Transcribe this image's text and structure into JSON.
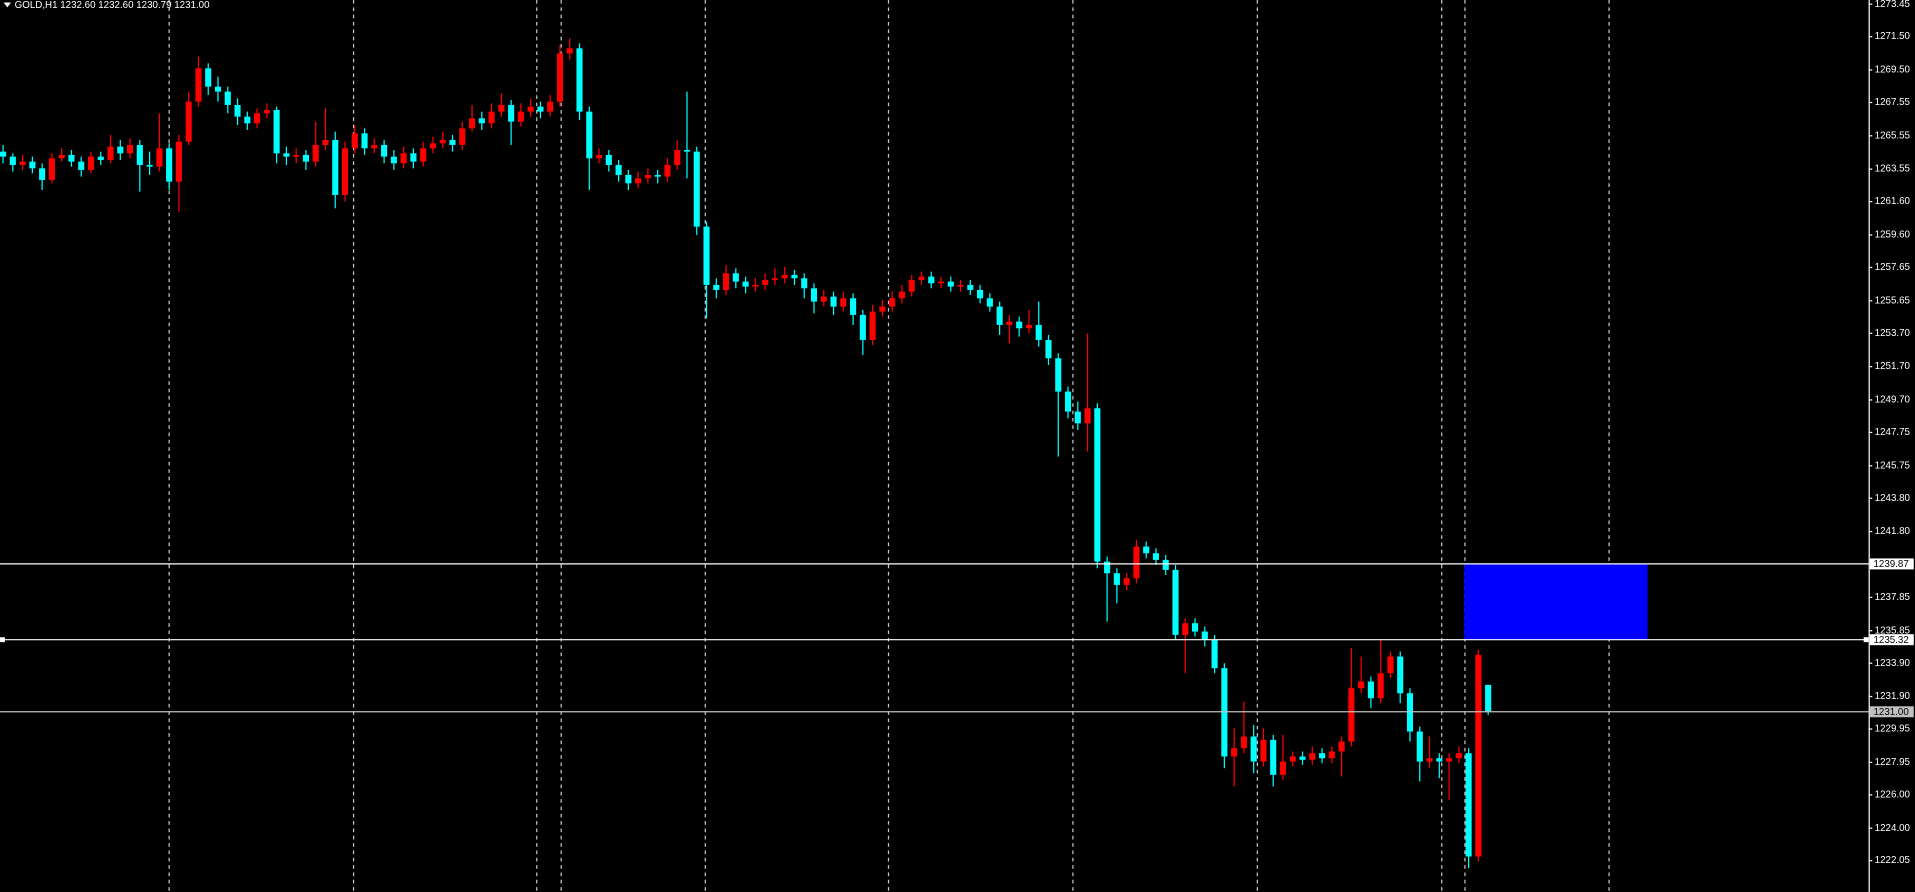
{
  "chart_data": {
    "type": "candlestick",
    "title": "GOLD,H1  1232.60 1232.60 1230.79 1231.00",
    "bull_color": "#ff0000",
    "bear_color": "#00ffff",
    "ylim": [
      1220.17,
      1273.7
    ],
    "yticks": [
      1273.45,
      {
        "value": 1271.5,
        "label": "1271.50"
      },
      {
        "value": 1269.5,
        "label": "1269.50"
      },
      1267.55,
      1265.55,
      1263.55,
      {
        "value": 1261.6,
        "label": "1261.60"
      },
      {
        "value": 1259.6,
        "label": "1259.60"
      },
      1257.65,
      1255.65,
      {
        "value": 1253.7,
        "label": "1253.70"
      },
      {
        "value": 1251.7,
        "label": "1251.70"
      },
      {
        "value": 1249.7,
        "label": "1249.70"
      },
      1247.75,
      1245.75,
      {
        "value": 1243.8,
        "label": "1243.80"
      },
      {
        "value": 1241.8,
        "label": "1241.80"
      },
      1237.85,
      1235.85,
      {
        "value": 1233.9,
        "label": "1233.90"
      },
      {
        "value": 1231.9,
        "label": "1231.90"
      },
      1229.95,
      1227.95,
      {
        "value": 1226,
        "label": "1226.00"
      },
      {
        "value": 1224,
        "label": "1224.00"
      },
      1222.05
    ],
    "levels": [
      {
        "value": 1239.87,
        "color": "#ffffff"
      },
      {
        "value": 1235.32,
        "color": "#ffffff"
      },
      {
        "value": 1231,
        "label": "1231.00",
        "color": "#c0c0c0"
      }
    ],
    "zone": {
      "from": 1239.87,
      "to": 1235.32,
      "color": "#0000ff"
    },
    "ohlc": [
      [
        1264.6,
        1265.0,
        1263.9,
        1264.3
      ],
      [
        1264.3,
        1264.5,
        1263.4,
        1263.8
      ],
      [
        1263.8,
        1264.4,
        1263.5,
        1264.0
      ],
      [
        1264.0,
        1264.3,
        1263.3,
        1263.6
      ],
      [
        1263.6,
        1263.9,
        1262.3,
        1262.9
      ],
      [
        1262.9,
        1264.5,
        1262.7,
        1264.2
      ],
      [
        1264.2,
        1264.8,
        1264.0,
        1264.4
      ],
      [
        1264.4,
        1264.7,
        1263.7,
        1264.0
      ],
      [
        1264.0,
        1264.3,
        1263.1,
        1263.5
      ],
      [
        1263.5,
        1264.6,
        1263.3,
        1264.3
      ],
      [
        1264.3,
        1264.6,
        1263.8,
        1264.1
      ],
      [
        1264.1,
        1265.6,
        1263.9,
        1264.9
      ],
      [
        1264.9,
        1265.3,
        1264.1,
        1264.5
      ],
      [
        1264.5,
        1265.4,
        1264.2,
        1265.0
      ],
      [
        1265.0,
        1265.3,
        1262.2,
        1263.8
      ],
      [
        1263.8,
        1264.6,
        1263.2,
        1263.7
      ],
      [
        1263.7,
        1266.9,
        1263.4,
        1264.8
      ],
      [
        1264.8,
        1265.1,
        1262.3,
        1262.8
      ],
      [
        1262.8,
        1265.6,
        1261.0,
        1265.2
      ],
      [
        1265.2,
        1268.2,
        1265.0,
        1267.6
      ],
      [
        1267.6,
        1270.3,
        1267.3,
        1269.6
      ],
      [
        1269.6,
        1269.9,
        1268.0,
        1268.5
      ],
      [
        1268.5,
        1269.1,
        1267.6,
        1268.2
      ],
      [
        1268.2,
        1268.5,
        1266.9,
        1267.4
      ],
      [
        1267.4,
        1267.8,
        1266.2,
        1266.7
      ],
      [
        1266.7,
        1267.0,
        1265.9,
        1266.3
      ],
      [
        1266.3,
        1267.2,
        1266.0,
        1266.9
      ],
      [
        1266.9,
        1267.5,
        1266.6,
        1267.1
      ],
      [
        1267.1,
        1267.3,
        1263.9,
        1264.5
      ],
      [
        1264.5,
        1264.9,
        1263.8,
        1264.3
      ],
      [
        1264.3,
        1264.8,
        1263.9,
        1264.4
      ],
      [
        1264.4,
        1264.7,
        1263.5,
        1264.0
      ],
      [
        1264.0,
        1266.4,
        1263.7,
        1265.0
      ],
      [
        1265.0,
        1267.2,
        1264.7,
        1265.3
      ],
      [
        1265.3,
        1265.8,
        1261.2,
        1262.0
      ],
      [
        1262.0,
        1265.2,
        1261.6,
        1264.8
      ],
      [
        1264.8,
        1266.2,
        1264.5,
        1265.7
      ],
      [
        1265.7,
        1266.0,
        1264.4,
        1264.8
      ],
      [
        1264.8,
        1265.4,
        1264.5,
        1265.0
      ],
      [
        1265.0,
        1265.3,
        1263.9,
        1264.3
      ],
      [
        1264.3,
        1264.7,
        1263.5,
        1263.9
      ],
      [
        1263.9,
        1264.9,
        1263.6,
        1264.5
      ],
      [
        1264.5,
        1264.8,
        1263.6,
        1264.0
      ],
      [
        1264.0,
        1265.2,
        1263.7,
        1264.8
      ],
      [
        1264.8,
        1265.5,
        1264.5,
        1265.1
      ],
      [
        1265.1,
        1265.8,
        1264.8,
        1265.3
      ],
      [
        1265.3,
        1265.6,
        1264.6,
        1265.0
      ],
      [
        1265.0,
        1266.4,
        1264.7,
        1266.0
      ],
      [
        1266.0,
        1267.4,
        1265.8,
        1266.6
      ],
      [
        1266.6,
        1267.0,
        1265.9,
        1266.3
      ],
      [
        1266.3,
        1267.5,
        1266.0,
        1267.0
      ],
      [
        1267.0,
        1268.1,
        1266.7,
        1267.4
      ],
      [
        1267.4,
        1267.7,
        1265.0,
        1266.4
      ],
      [
        1266.4,
        1267.5,
        1266.1,
        1267.0
      ],
      [
        1267.0,
        1267.8,
        1266.7,
        1267.3
      ],
      [
        1267.3,
        1267.6,
        1266.6,
        1267.0
      ],
      [
        1267.0,
        1268.0,
        1266.7,
        1267.6
      ],
      [
        1267.6,
        1271.0,
        1267.3,
        1270.5
      ],
      [
        1270.5,
        1271.4,
        1270.1,
        1270.8
      ],
      [
        1270.8,
        1271.1,
        1266.5,
        1267.0
      ],
      [
        1267.0,
        1267.3,
        1262.3,
        1264.2
      ],
      [
        1264.2,
        1264.8,
        1263.9,
        1264.4
      ],
      [
        1264.4,
        1264.7,
        1263.4,
        1263.8
      ],
      [
        1263.8,
        1264.1,
        1262.8,
        1263.2
      ],
      [
        1263.2,
        1263.5,
        1262.3,
        1262.7
      ],
      [
        1262.7,
        1263.4,
        1262.4,
        1263.0
      ],
      [
        1263.0,
        1263.6,
        1262.7,
        1263.2
      ],
      [
        1263.2,
        1263.5,
        1262.7,
        1263.1
      ],
      [
        1263.1,
        1264.2,
        1262.8,
        1263.8
      ],
      [
        1263.8,
        1265.3,
        1263.5,
        1264.7
      ],
      [
        1264.7,
        1268.2,
        1263.0,
        1264.6
      ],
      [
        1264.6,
        1264.9,
        1259.6,
        1260.1
      ],
      [
        1260.1,
        1260.4,
        1254.6,
        1256.6
      ],
      [
        1256.6,
        1257.0,
        1255.8,
        1256.3
      ],
      [
        1256.3,
        1257.8,
        1256.0,
        1257.3
      ],
      [
        1257.3,
        1257.6,
        1256.4,
        1256.8
      ],
      [
        1256.8,
        1257.1,
        1256.1,
        1256.5
      ],
      [
        1256.5,
        1257.0,
        1256.2,
        1256.6
      ],
      [
        1256.6,
        1257.3,
        1256.3,
        1256.9
      ],
      [
        1256.9,
        1257.6,
        1256.6,
        1257.0
      ],
      [
        1257.0,
        1257.7,
        1256.7,
        1257.2
      ],
      [
        1257.2,
        1257.5,
        1256.6,
        1257.0
      ],
      [
        1257.0,
        1257.3,
        1255.8,
        1256.4
      ],
      [
        1256.4,
        1256.7,
        1254.9,
        1255.6
      ],
      [
        1255.6,
        1256.3,
        1255.3,
        1255.9
      ],
      [
        1255.9,
        1256.2,
        1254.8,
        1255.3
      ],
      [
        1255.3,
        1256.2,
        1255.0,
        1255.8
      ],
      [
        1255.8,
        1256.1,
        1254.2,
        1254.8
      ],
      [
        1254.8,
        1255.1,
        1252.4,
        1253.3
      ],
      [
        1253.3,
        1255.4,
        1253.0,
        1255.0
      ],
      [
        1255.0,
        1255.7,
        1254.7,
        1255.3
      ],
      [
        1255.3,
        1256.2,
        1255.0,
        1255.8
      ],
      [
        1255.8,
        1256.6,
        1255.5,
        1256.2
      ],
      [
        1256.2,
        1257.2,
        1255.9,
        1256.9
      ],
      [
        1256.9,
        1257.4,
        1256.6,
        1257.1
      ],
      [
        1257.1,
        1257.4,
        1256.4,
        1256.7
      ],
      [
        1256.7,
        1257.1,
        1256.4,
        1256.8
      ],
      [
        1256.8,
        1257.1,
        1256.2,
        1256.5
      ],
      [
        1256.5,
        1256.9,
        1256.2,
        1256.6
      ],
      [
        1256.6,
        1256.9,
        1256.0,
        1256.3
      ],
      [
        1256.3,
        1256.6,
        1255.5,
        1255.8
      ],
      [
        1255.8,
        1256.1,
        1255.0,
        1255.3
      ],
      [
        1255.3,
        1255.6,
        1253.6,
        1254.2
      ],
      [
        1254.2,
        1254.8,
        1253.1,
        1254.4
      ],
      [
        1254.4,
        1254.7,
        1253.5,
        1254.0
      ],
      [
        1254.0,
        1255.1,
        1253.7,
        1254.2
      ],
      [
        1254.2,
        1255.6,
        1252.9,
        1253.3
      ],
      [
        1253.3,
        1253.6,
        1251.8,
        1252.2
      ],
      [
        1252.2,
        1252.5,
        1246.3,
        1250.2
      ],
      [
        1250.2,
        1250.5,
        1248.6,
        1249.0
      ],
      [
        1249.0,
        1249.6,
        1247.9,
        1248.3
      ],
      [
        1248.3,
        1253.7,
        1246.6,
        1249.2
      ],
      [
        1249.2,
        1249.5,
        1239.6,
        1240.0
      ],
      [
        1240.0,
        1240.3,
        1236.4,
        1239.3
      ],
      [
        1239.3,
        1239.6,
        1237.5,
        1238.6
      ],
      [
        1238.6,
        1239.3,
        1238.3,
        1239.0
      ],
      [
        1239.0,
        1241.3,
        1238.7,
        1240.9
      ],
      [
        1240.9,
        1241.2,
        1240.2,
        1240.5
      ],
      [
        1240.5,
        1240.8,
        1239.8,
        1240.1
      ],
      [
        1240.1,
        1240.4,
        1239.2,
        1239.5
      ],
      [
        1239.5,
        1239.8,
        1235.3,
        1235.6
      ],
      [
        1235.6,
        1236.6,
        1233.3,
        1236.3
      ],
      [
        1236.3,
        1236.6,
        1235.5,
        1235.8
      ],
      [
        1235.8,
        1236.1,
        1234.9,
        1235.3
      ],
      [
        1235.3,
        1235.6,
        1233.3,
        1233.6
      ],
      [
        1233.6,
        1233.9,
        1227.6,
        1228.3
      ],
      [
        1228.3,
        1230.0,
        1226.5,
        1228.8
      ],
      [
        1228.8,
        1231.6,
        1228.5,
        1229.5
      ],
      [
        1229.5,
        1230.2,
        1227.3,
        1228.0
      ],
      [
        1228.0,
        1230.0,
        1227.7,
        1229.3
      ],
      [
        1229.3,
        1229.6,
        1226.5,
        1227.2
      ],
      [
        1227.2,
        1229.6,
        1226.9,
        1228.0
      ],
      [
        1228.0,
        1228.6,
        1227.7,
        1228.3
      ],
      [
        1228.3,
        1228.6,
        1227.8,
        1228.1
      ],
      [
        1228.1,
        1228.9,
        1227.8,
        1228.5
      ],
      [
        1228.5,
        1228.8,
        1227.9,
        1228.2
      ],
      [
        1228.2,
        1228.9,
        1227.9,
        1228.6
      ],
      [
        1228.6,
        1229.5,
        1227.1,
        1229.2
      ],
      [
        1229.2,
        1234.8,
        1228.9,
        1232.4
      ],
      [
        1232.4,
        1234.3,
        1232.1,
        1232.8
      ],
      [
        1232.8,
        1233.1,
        1231.2,
        1231.8
      ],
      [
        1231.8,
        1235.3,
        1231.5,
        1233.3
      ],
      [
        1233.3,
        1234.6,
        1233.0,
        1234.3
      ],
      [
        1234.3,
        1234.6,
        1231.5,
        1232.1
      ],
      [
        1232.1,
        1232.4,
        1229.2,
        1229.8
      ],
      [
        1229.8,
        1230.1,
        1226.8,
        1228.0
      ],
      [
        1228.0,
        1229.5,
        1227.6,
        1228.2
      ],
      [
        1228.2,
        1228.5,
        1227.0,
        1228.0
      ],
      [
        1228.0,
        1228.5,
        1225.7,
        1228.2
      ],
      [
        1228.2,
        1228.9,
        1227.9,
        1228.5
      ],
      [
        1228.5,
        1228.8,
        1221.6,
        1222.3
      ],
      [
        1222.3,
        1234.7,
        1222.0,
        1234.4
      ],
      [
        1232.6,
        1232.6,
        1230.79,
        1231.0
      ]
    ]
  }
}
